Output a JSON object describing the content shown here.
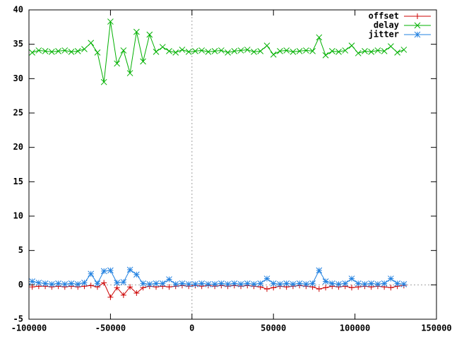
{
  "chart_data": {
    "type": "line",
    "x": [
      -98000,
      -94000,
      -90000,
      -86000,
      -82000,
      -78000,
      -74000,
      -70000,
      -66000,
      -62000,
      -58000,
      -54000,
      -50000,
      -46000,
      -42000,
      -38000,
      -34000,
      -30000,
      -26000,
      -22000,
      -18000,
      -14000,
      -10000,
      -6000,
      -2000,
      2000,
      6000,
      10000,
      14000,
      18000,
      22000,
      26000,
      30000,
      34000,
      38000,
      42000,
      46000,
      50000,
      54000,
      58000,
      62000,
      66000,
      70000,
      74000,
      78000,
      82000,
      86000,
      90000,
      94000,
      98000,
      102000,
      106000,
      110000,
      114000,
      118000,
      122000,
      126000,
      130000
    ],
    "series": [
      {
        "name": "offset",
        "color": "#cc0000",
        "marker": "plus",
        "values": [
          -0.3,
          -0.2,
          -0.2,
          -0.3,
          -0.2,
          -0.3,
          -0.2,
          -0.3,
          -0.2,
          -0.1,
          -0.3,
          0.3,
          -1.8,
          -0.4,
          -1.5,
          -0.3,
          -1.2,
          -0.4,
          -0.2,
          -0.3,
          -0.2,
          -0.3,
          -0.2,
          -0.1,
          -0.2,
          -0.1,
          -0.2,
          -0.1,
          -0.2,
          -0.1,
          -0.2,
          -0.1,
          -0.2,
          -0.1,
          -0.2,
          -0.3,
          -0.6,
          -0.4,
          -0.2,
          -0.3,
          -0.2,
          -0.1,
          -0.2,
          -0.3,
          -0.6,
          -0.4,
          -0.2,
          -0.3,
          -0.2,
          -0.4,
          -0.3,
          -0.2,
          -0.3,
          -0.2,
          -0.3,
          -0.4,
          -0.2,
          -0.1
        ]
      },
      {
        "name": "delay",
        "color": "#00b000",
        "marker": "cross",
        "values": [
          33.8,
          34.1,
          34.0,
          33.9,
          34.0,
          34.1,
          33.9,
          34.0,
          34.3,
          35.2,
          33.8,
          29.5,
          38.3,
          32.2,
          34.1,
          30.8,
          36.8,
          32.5,
          36.4,
          33.9,
          34.6,
          34.0,
          33.8,
          34.2,
          33.9,
          34.0,
          34.1,
          33.9,
          34.0,
          34.1,
          33.8,
          34.0,
          34.1,
          34.2,
          33.9,
          34.0,
          34.8,
          33.5,
          34.0,
          34.1,
          33.9,
          34.0,
          34.1,
          34.0,
          36.0,
          33.4,
          34.0,
          33.9,
          34.1,
          34.8,
          33.7,
          34.0,
          33.9,
          34.1,
          34.0,
          34.7,
          33.8,
          34.2
        ]
      },
      {
        "name": "jitter",
        "color": "#2080e0",
        "marker": "star",
        "values": [
          0.5,
          0.3,
          0.2,
          0.1,
          0.2,
          0.1,
          0.2,
          0.1,
          0.3,
          1.6,
          0.2,
          2.0,
          2.1,
          0.3,
          0.4,
          2.2,
          1.5,
          0.2,
          0.1,
          0.2,
          0.2,
          0.8,
          0.1,
          0.2,
          0.1,
          0.1,
          0.2,
          0.1,
          0.1,
          0.2,
          0.1,
          0.2,
          0.1,
          0.2,
          0.1,
          0.2,
          0.9,
          0.2,
          0.1,
          0.2,
          0.1,
          0.2,
          0.1,
          0.2,
          2.1,
          0.5,
          0.2,
          0.1,
          0.2,
          0.9,
          0.2,
          0.1,
          0.2,
          0.1,
          0.2,
          0.9,
          0.2,
          0.1
        ]
      }
    ],
    "xlim": [
      -100000,
      150000
    ],
    "ylim": [
      -5,
      40
    ],
    "xticks": [
      -100000,
      -50000,
      0,
      50000,
      100000,
      150000
    ],
    "yticks": [
      -5,
      0,
      5,
      10,
      15,
      20,
      25,
      30,
      35,
      40
    ],
    "zeroaxis": true,
    "legend": "top-right"
  }
}
